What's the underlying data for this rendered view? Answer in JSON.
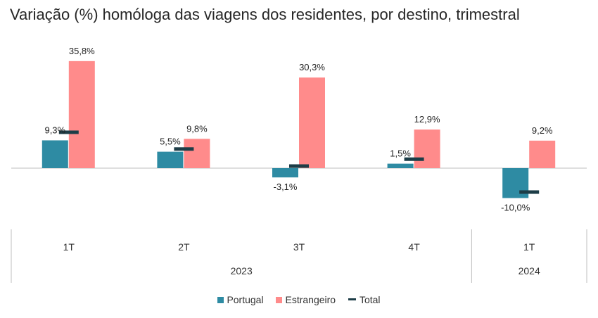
{
  "chart_data": {
    "type": "bar",
    "title": "Variação (%) homóloga das viagens dos residentes, por destino, trimestral",
    "categories": [
      "1T",
      "2T",
      "3T",
      "4T",
      "1T"
    ],
    "group_labels": [
      "2023",
      "2024"
    ],
    "group_sizes": [
      4,
      1
    ],
    "series": [
      {
        "name": "Portugal",
        "kind": "bar",
        "color": "#2e8ba3",
        "values": [
          9.3,
          5.5,
          -3.1,
          1.5,
          -10.0
        ],
        "labels": [
          "9,3%",
          "5,5%",
          "-3,1%",
          "1,5%",
          "-10,0%"
        ]
      },
      {
        "name": "Estrangeiro",
        "kind": "bar",
        "color": "#ff8b8b",
        "values": [
          35.8,
          9.8,
          30.3,
          12.9,
          9.2
        ],
        "labels": [
          "35,8%",
          "9,8%",
          "30,3%",
          "12,9%",
          "9,2%"
        ]
      },
      {
        "name": "Total",
        "kind": "marker",
        "color": "#1d3d47",
        "values": [
          12.0,
          6.4,
          0.7,
          3.0,
          -8.0
        ]
      }
    ],
    "ylim": [
      -14,
      38
    ],
    "grid": false,
    "legend_position": "bottom"
  }
}
